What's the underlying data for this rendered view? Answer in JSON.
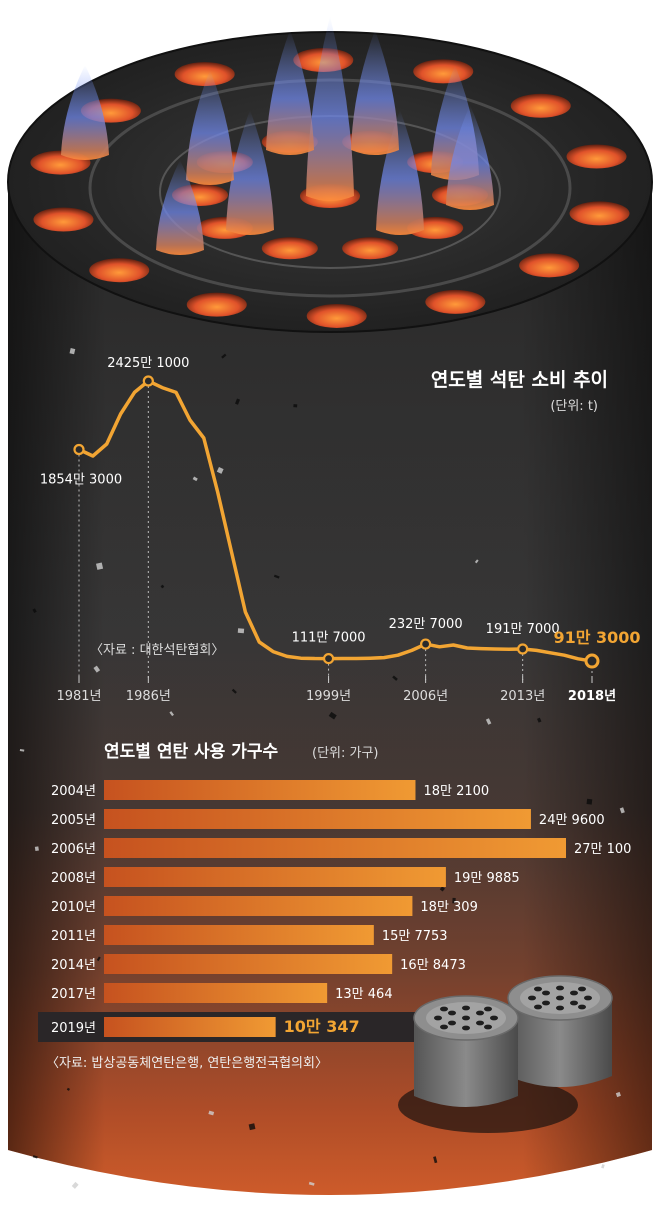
{
  "chart_data": [
    {
      "type": "line",
      "title": "연도별 석탄 소비 추이",
      "unit_note": "(단위: t)",
      "source": "〈자료 : 대한석탄협회〉",
      "x_ticks": [
        "1981년",
        "1986년",
        "1999년",
        "2006년",
        "2013년",
        "2018년"
      ],
      "x": [
        1981,
        1982,
        1983,
        1984,
        1985,
        1986,
        1987,
        1988,
        1989,
        1990,
        1991,
        1992,
        1993,
        1994,
        1995,
        1996,
        1997,
        1998,
        1999,
        2000,
        2001,
        2002,
        2003,
        2004,
        2005,
        2006,
        2007,
        2008,
        2009,
        2010,
        2011,
        2012,
        2013,
        2014,
        2015,
        2016,
        2017,
        2018
      ],
      "values": [
        1854.3,
        1800,
        1900,
        2150,
        2330,
        2425.1,
        2370,
        2330,
        2100,
        1950,
        1500,
        1000,
        500,
        250,
        170,
        130,
        115,
        112,
        111.7,
        113,
        112,
        115,
        120,
        140,
        180,
        232.7,
        210,
        225,
        200,
        195,
        192,
        190,
        191.7,
        180,
        160,
        140,
        110,
        91.3
      ],
      "value_unit": "만 t",
      "ylim": [
        0,
        2600
      ],
      "annotations": [
        {
          "x": 1981,
          "label": "1854만 3000"
        },
        {
          "x": 1986,
          "label": "2425만 1000"
        },
        {
          "x": 1999,
          "label": "111만 7000"
        },
        {
          "x": 2006,
          "label": "232만 7000"
        },
        {
          "x": 2013,
          "label": "191만 7000"
        },
        {
          "x": 2018,
          "label": "91만 3000",
          "highlight": true
        }
      ]
    },
    {
      "type": "bar",
      "orientation": "horizontal",
      "title": "연도별 연탄 사용 가구수",
      "unit_note": "(단위: 가구)",
      "source": "〈자료: 밥상공동체연탄은행, 연탄은행전국협의회〉",
      "categories": [
        "2004년",
        "2005년",
        "2006년",
        "2008년",
        "2010년",
        "2011년",
        "2014년",
        "2017년",
        "2019년"
      ],
      "values": [
        182100,
        249600,
        270100,
        199885,
        180309,
        157753,
        168473,
        130464,
        100347
      ],
      "labels": [
        "18만 2100",
        "24만 9600",
        "27만 100",
        "19만 9885",
        "18만 309",
        "15만 7753",
        "16만 8473",
        "13만 464",
        "10만 347"
      ],
      "highlight_category": "2019년"
    }
  ],
  "colors": {
    "line": "#f2a533",
    "bar": "#e8902f",
    "highlight_text": "#f2a533",
    "text": "#ffffff",
    "axis_text": "#dddddd"
  }
}
